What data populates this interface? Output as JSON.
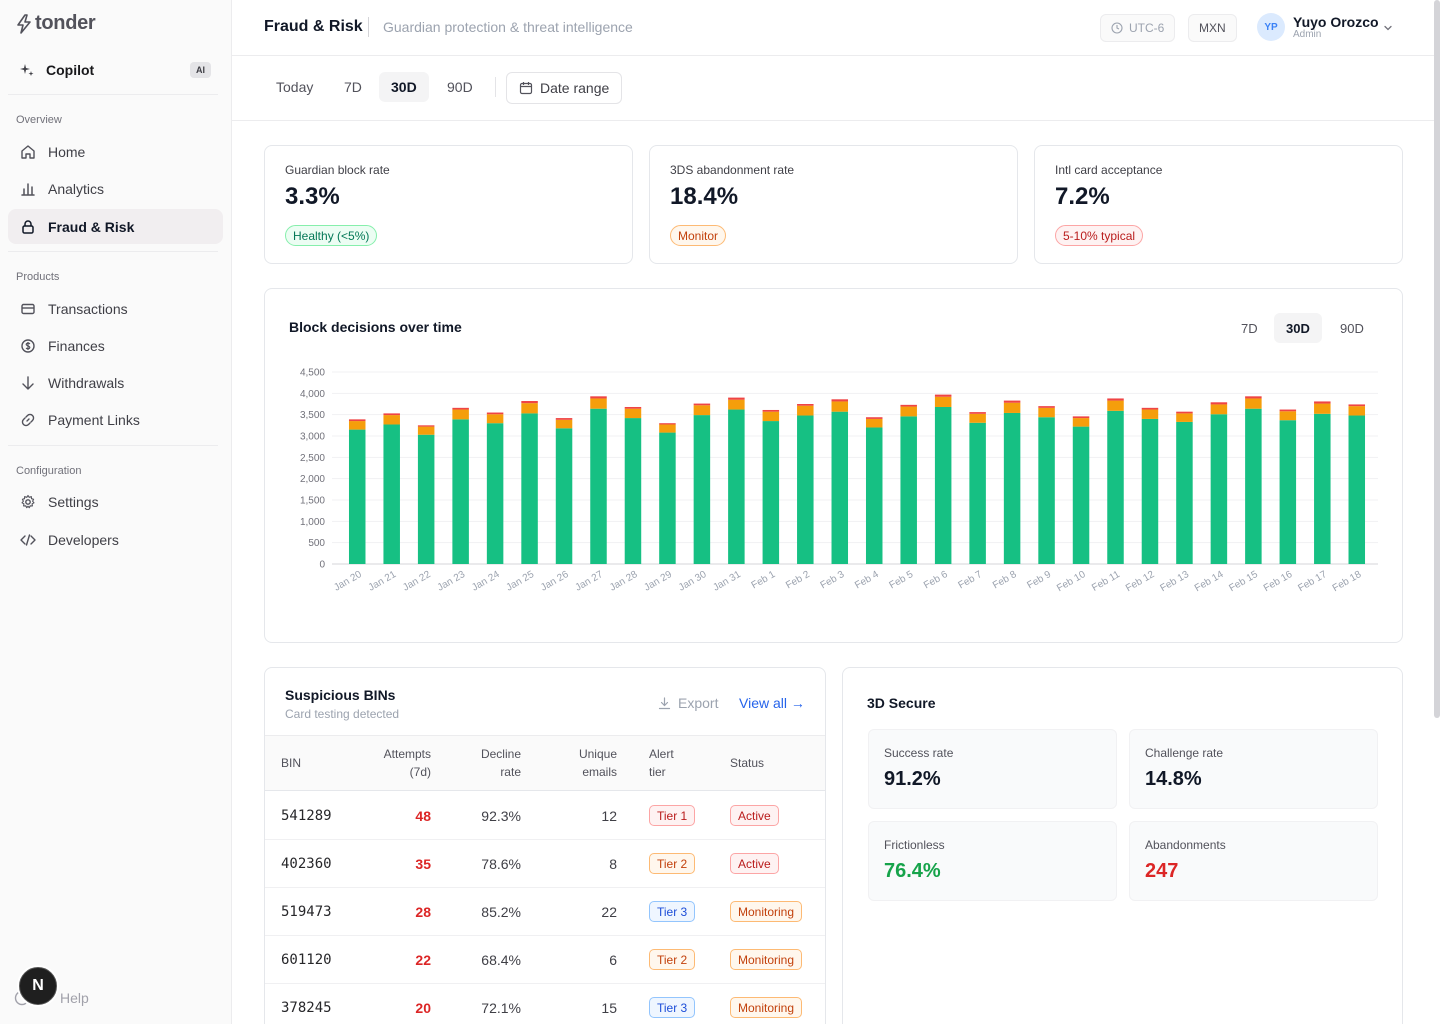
{
  "brand": {
    "name": "tonder"
  },
  "sidebar": {
    "copilot": {
      "label": "Copilot",
      "badge": "AI"
    },
    "sections": {
      "overview": "Overview",
      "products": "Products",
      "configuration": "Configuration"
    },
    "items": [
      {
        "label": "Home",
        "icon": "home-icon"
      },
      {
        "label": "Analytics",
        "icon": "bar-chart-icon"
      },
      {
        "label": "Fraud & Risk",
        "icon": "lock-icon",
        "active": true
      },
      {
        "label": "Transactions",
        "icon": "credit-card-icon"
      },
      {
        "label": "Finances",
        "icon": "dollar-circle-icon"
      },
      {
        "label": "Withdrawals",
        "icon": "arrow-down-icon"
      },
      {
        "label": "Payment Links",
        "icon": "link-icon"
      },
      {
        "label": "Settings",
        "icon": "gear-icon"
      },
      {
        "label": "Developers",
        "icon": "code-icon"
      }
    ],
    "help": "Help",
    "dev_badge": "N"
  },
  "header": {
    "title": "Fraud & Risk",
    "subtitle": "Guardian protection & threat intelligence",
    "timezone": "UTC-6",
    "currency": "MXN",
    "user": {
      "initials": "YP",
      "name": "Yuyo Orozco",
      "role": "Admin"
    }
  },
  "range": {
    "options": [
      "Today",
      "7D",
      "30D",
      "90D"
    ],
    "active": "30D",
    "date_range_label": "Date range"
  },
  "kpis": [
    {
      "label": "Guardian block rate",
      "value": "3.3%",
      "badge": "Healthy (<5%)",
      "tone": "green"
    },
    {
      "label": "3DS abandonment rate",
      "value": "18.4%",
      "badge": "Monitor",
      "tone": "orange"
    },
    {
      "label": "Intl card acceptance",
      "value": "7.2%",
      "badge": "5-10% typical",
      "tone": "red"
    }
  ],
  "chart_card": {
    "title": "Block decisions over time",
    "options": [
      "7D",
      "30D",
      "90D"
    ],
    "active": "30D"
  },
  "chart_data": {
    "type": "bar",
    "stacked": true,
    "title": "Block decisions over time",
    "categories": [
      "Jan 20",
      "Jan 21",
      "Jan 22",
      "Jan 23",
      "Jan 24",
      "Jan 25",
      "Jan 26",
      "Jan 27",
      "Jan 28",
      "Jan 29",
      "Jan 30",
      "Jan 31",
      "Feb 1",
      "Feb 2",
      "Feb 3",
      "Feb 4",
      "Feb 5",
      "Feb 6",
      "Feb 7",
      "Feb 8",
      "Feb 9",
      "Feb 10",
      "Feb 11",
      "Feb 12",
      "Feb 13",
      "Feb 14",
      "Feb 15",
      "Feb 16",
      "Feb 17",
      "Feb 18"
    ],
    "series": [
      {
        "values": [
          3150,
          3270,
          3030,
          3390,
          3300,
          3530,
          3180,
          3640,
          3420,
          3080,
          3490,
          3620,
          3350,
          3480,
          3570,
          3200,
          3460,
          3680,
          3310,
          3540,
          3440,
          3220,
          3590,
          3400,
          3330,
          3510,
          3640,
          3370,
          3520,
          3480
        ],
        "color": "#16c083"
      },
      {
        "values": [
          200,
          220,
          190,
          230,
          210,
          240,
          200,
          240,
          220,
          190,
          230,
          230,
          220,
          230,
          240,
          200,
          230,
          240,
          210,
          240,
          220,
          200,
          240,
          220,
          200,
          230,
          240,
          210,
          240,
          220
        ],
        "color": "#f59e0b"
      },
      {
        "values": [
          40,
          40,
          30,
          40,
          40,
          50,
          40,
          50,
          40,
          30,
          40,
          50,
          40,
          40,
          50,
          40,
          40,
          50,
          40,
          50,
          40,
          40,
          50,
          40,
          40,
          50,
          50,
          40,
          50,
          40
        ],
        "color": "#ef4444"
      }
    ],
    "ylim": [
      0,
      4500
    ],
    "yticks": [
      "0",
      "500",
      "1,000",
      "1,500",
      "2,000",
      "2,500",
      "3,000",
      "3,500",
      "4,000",
      "4,500"
    ],
    "grid": true,
    "xlabel": "",
    "ylabel": ""
  },
  "bins": {
    "title": "Suspicious BINs",
    "subtitle": "Card testing detected",
    "export_label": "Export",
    "view_all_label": "View all →",
    "columns": [
      {
        "l1": "BIN",
        "l2": ""
      },
      {
        "l1": "Attempts",
        "l2": "(7d)"
      },
      {
        "l1": "Decline",
        "l2": "rate"
      },
      {
        "l1": "Unique",
        "l2": "emails"
      },
      {
        "l1": "Alert",
        "l2": "tier"
      },
      {
        "l1": "Status",
        "l2": ""
      }
    ],
    "rows": [
      {
        "bin": "541289",
        "attempts": "48",
        "decline": "92.3%",
        "emails": "12",
        "tier": "Tier 1",
        "tier_tone": "red",
        "status": "Active",
        "status_tone": "red"
      },
      {
        "bin": "402360",
        "attempts": "35",
        "decline": "78.6%",
        "emails": "8",
        "tier": "Tier 2",
        "tier_tone": "orange",
        "status": "Active",
        "status_tone": "red"
      },
      {
        "bin": "519473",
        "attempts": "28",
        "decline": "85.2%",
        "emails": "22",
        "tier": "Tier 3",
        "tier_tone": "blue",
        "status": "Monitoring",
        "status_tone": "orange"
      },
      {
        "bin": "601120",
        "attempts": "22",
        "decline": "68.4%",
        "emails": "6",
        "tier": "Tier 2",
        "tier_tone": "orange",
        "status": "Monitoring",
        "status_tone": "orange"
      },
      {
        "bin": "378245",
        "attempts": "20",
        "decline": "72.1%",
        "emails": "15",
        "tier": "Tier 3",
        "tier_tone": "blue",
        "status": "Monitoring",
        "status_tone": "orange"
      }
    ]
  },
  "tds": {
    "title": "3D Secure",
    "stats": [
      {
        "label": "Success rate",
        "value": "91.2%",
        "color": "#111827"
      },
      {
        "label": "Challenge rate",
        "value": "14.8%",
        "color": "#111827"
      },
      {
        "label": "Frictionless",
        "value": "76.4%",
        "color": "#16a34a"
      },
      {
        "label": "Abandonments",
        "value": "247",
        "color": "#dc2626"
      }
    ]
  }
}
